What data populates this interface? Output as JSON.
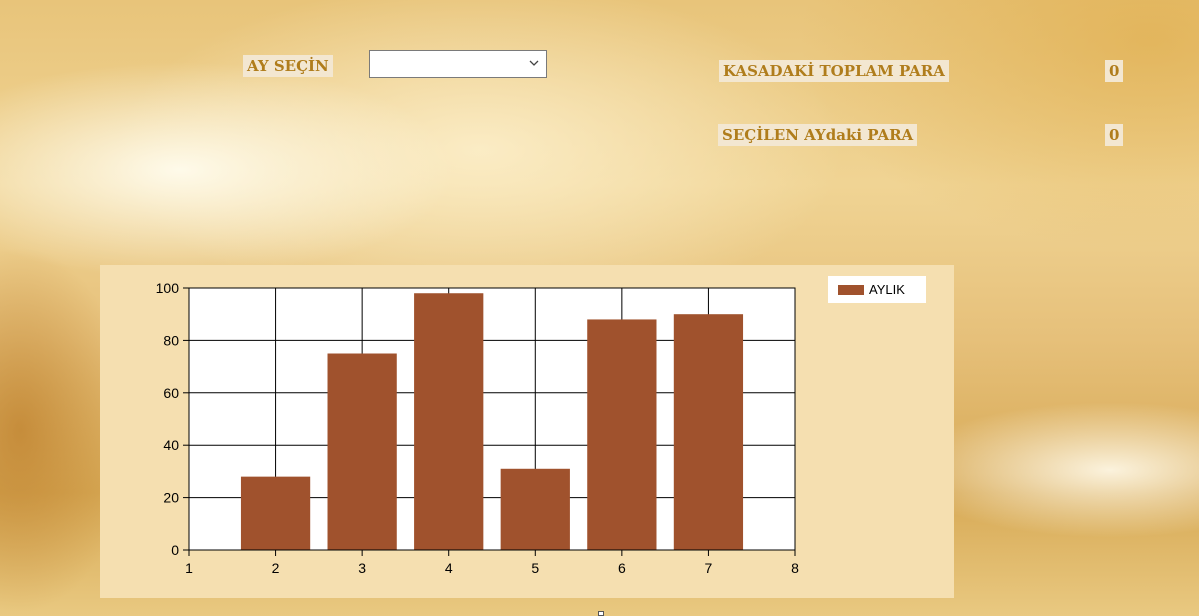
{
  "form": {
    "month_label": "AY SEÇİN",
    "month_select": {
      "value": ""
    },
    "total_cash_label": "KASADAKİ TOPLAM PARA",
    "total_cash_value": "0",
    "selected_month_label": "SEÇİLEN AYdaki PARA",
    "selected_month_value": "0"
  },
  "colors": {
    "bar": "#a0522d",
    "panel": "#f5dfb0",
    "label_text": "#b07d1c",
    "label_bg": "#f3e7d1"
  },
  "chart_data": {
    "type": "bar",
    "series": [
      {
        "name": "AYLIK",
        "x": [
          2,
          3,
          4,
          5,
          6,
          7
        ],
        "values": [
          28,
          75,
          98,
          31,
          88,
          90
        ]
      }
    ],
    "xlim": [
      1,
      8
    ],
    "ylim": [
      0,
      100
    ],
    "xticks": [
      1,
      2,
      3,
      4,
      5,
      6,
      7,
      8
    ],
    "yticks": [
      0,
      20,
      40,
      60,
      80,
      100
    ],
    "grid": true,
    "legend": "top-right",
    "title": "",
    "xlabel": "",
    "ylabel": ""
  }
}
